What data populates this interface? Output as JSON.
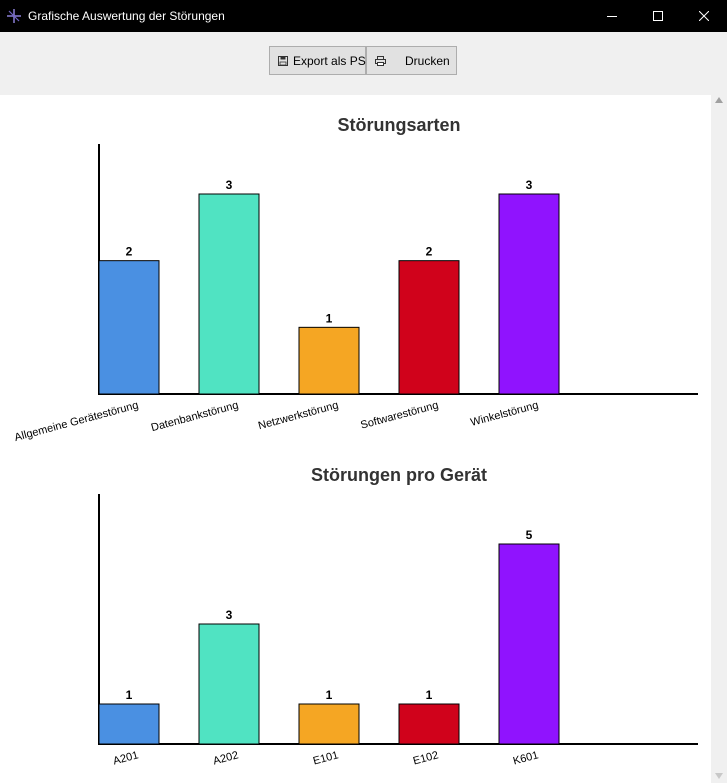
{
  "window": {
    "title": "Grafische Auswertung der Störungen",
    "icon": "app-icon",
    "controls": [
      "minimize-icon",
      "maximize-icon",
      "close-icon"
    ]
  },
  "toolbar": {
    "export_label": "Export als PS",
    "export_icon": "save-icon",
    "print_label": "Drucken",
    "print_icon": "printer-icon"
  },
  "chart_data": [
    {
      "type": "bar",
      "title": "Störungsarten",
      "categories": [
        "Allgemeine Gerätestörung",
        "Datenbankstörung",
        "Netzwerkstörung",
        "Softwarestörung",
        "Winkelstörung"
      ],
      "values": [
        2,
        3,
        1,
        2,
        3
      ],
      "colors": [
        "#4a90e2",
        "#50e3c2",
        "#f5a623",
        "#d0021b",
        "#9013fe"
      ],
      "ylim": [
        0,
        3.75
      ],
      "xlabel": "",
      "ylabel": "",
      "grid": false,
      "legend": "none",
      "show_value_labels": true
    },
    {
      "type": "bar",
      "title": "Störungen pro Gerät",
      "categories": [
        "A201",
        "A202",
        "E101",
        "E102",
        "K601"
      ],
      "values": [
        1,
        3,
        1,
        1,
        5
      ],
      "colors": [
        "#4a90e2",
        "#50e3c2",
        "#f5a623",
        "#d0021b",
        "#9013fe"
      ],
      "ylim": [
        0,
        6.25
      ],
      "xlabel": "",
      "ylabel": "",
      "grid": false,
      "legend": "none",
      "show_value_labels": true
    }
  ]
}
